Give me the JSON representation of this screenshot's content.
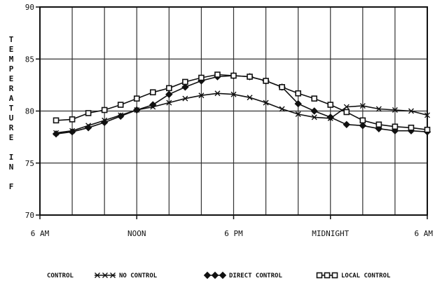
{
  "chart_data": {
    "type": "line",
    "ylabel_letters": [
      "T",
      "E",
      "M",
      "P",
      "E",
      "R",
      "A",
      "T",
      "U",
      "R",
      "E",
      "",
      "I",
      "N",
      "",
      "F"
    ],
    "ylim": [
      70,
      90
    ],
    "yticks": [
      "70",
      "75",
      "80",
      "85",
      "90"
    ],
    "xlim": [
      0,
      24
    ],
    "xtick_labels": [
      {
        "x": 0,
        "label": "6 AM"
      },
      {
        "x": 6,
        "label": "NOON"
      },
      {
        "x": 12,
        "label": "6 PM"
      },
      {
        "x": 18,
        "label": "MIDNIGHT"
      },
      {
        "x": 24,
        "label": "6 AM"
      }
    ],
    "grid": true,
    "legend_title": "CONTROL",
    "legend_position": "bottom",
    "series": [
      {
        "name": "NO CONTROL",
        "marker": "x",
        "x": [
          1,
          2,
          3,
          4,
          5,
          6,
          7,
          8,
          9,
          10,
          11,
          12,
          13,
          14,
          15,
          16,
          17,
          18,
          19,
          20,
          21,
          22,
          23,
          24
        ],
        "values": [
          77.9,
          78.1,
          78.6,
          79.1,
          79.6,
          80.1,
          80.4,
          80.8,
          81.2,
          81.5,
          81.7,
          81.6,
          81.3,
          80.8,
          80.2,
          79.7,
          79.4,
          79.3,
          80.4,
          80.5,
          80.2,
          80.1,
          80.0,
          79.6
        ]
      },
      {
        "name": "DIRECT CONTROL",
        "marker": "diamond",
        "x": [
          1,
          2,
          3,
          4,
          5,
          6,
          7,
          8,
          9,
          10,
          11,
          12,
          13,
          14,
          15,
          16,
          17,
          18,
          19,
          20,
          21,
          22,
          23,
          24
        ],
        "values": [
          77.8,
          78.0,
          78.4,
          78.9,
          79.5,
          80.1,
          80.6,
          81.6,
          82.3,
          82.9,
          83.3,
          83.4,
          83.3,
          82.9,
          82.3,
          80.7,
          80.0,
          79.4,
          78.7,
          78.6,
          78.3,
          78.1,
          78.1,
          78.0
        ]
      },
      {
        "name": "LOCAL CONTROL",
        "marker": "square",
        "x": [
          1,
          2,
          3,
          4,
          5,
          6,
          7,
          8,
          9,
          10,
          11,
          12,
          13,
          14,
          15,
          16,
          17,
          18,
          19,
          20,
          21,
          22,
          23,
          24
        ],
        "values": [
          79.1,
          79.2,
          79.8,
          80.1,
          80.6,
          81.2,
          81.8,
          82.2,
          82.8,
          83.2,
          83.5,
          83.4,
          83.3,
          82.9,
          82.3,
          81.7,
          81.2,
          80.6,
          79.9,
          79.1,
          78.7,
          78.5,
          78.4,
          78.2
        ]
      }
    ]
  }
}
